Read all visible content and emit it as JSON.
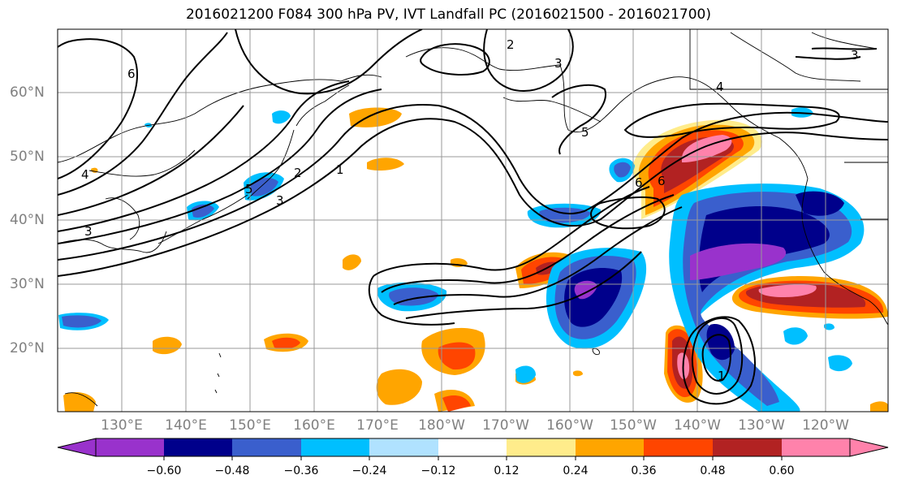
{
  "title": "2016021200 F084 300 hPa PV, IVT Landfall PC (2016021500 - 2016021700)",
  "lat_labels": [
    "60°N",
    "50°N",
    "40°N",
    "30°N",
    "20°N"
  ],
  "lon_labels": [
    "130°E",
    "140°E",
    "150°E",
    "160°E",
    "170°E",
    "180°W",
    "170°W",
    "160°W",
    "150°W",
    "140°W",
    "130°W",
    "120°W"
  ],
  "contour_labels": [
    "6",
    "2",
    "3",
    "3",
    "4",
    "5",
    "6",
    "4",
    "1",
    "2",
    "3",
    "3",
    "5",
    "6",
    "1"
  ],
  "colorbar": {
    "ticks": [
      "−0.60",
      "−0.48",
      "−0.36",
      "−0.24",
      "−0.12",
      "0.12",
      "0.24",
      "0.36",
      "0.48",
      "0.60"
    ],
    "colors": [
      "#9932cc",
      "#00008b",
      "#3a5fcd",
      "#00bfff",
      "#b0e2ff",
      "#ffffff",
      "#ffec8b",
      "#ffa500",
      "#ff4500",
      "#b22222",
      "#ff82ab",
      "#ff82ab"
    ]
  }
}
